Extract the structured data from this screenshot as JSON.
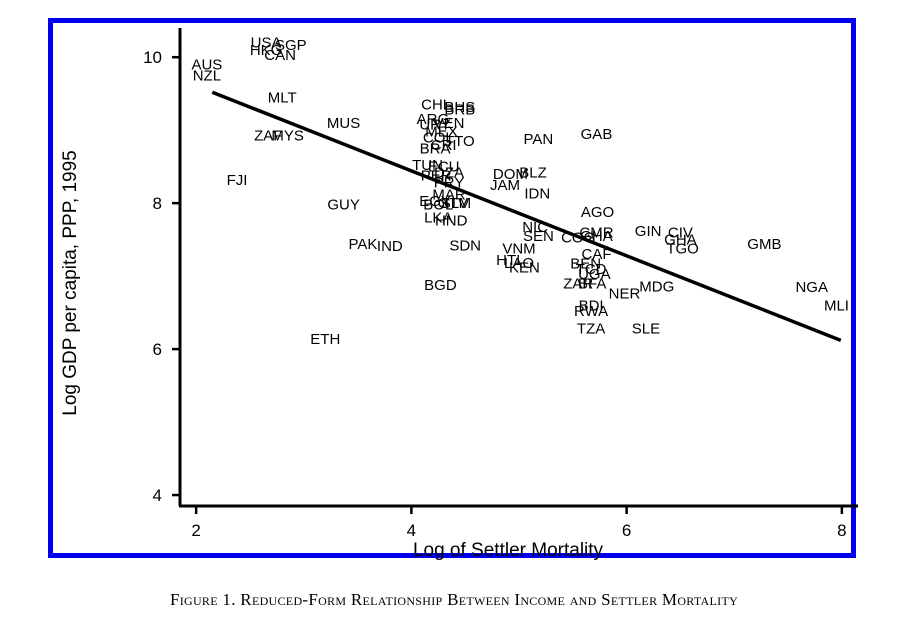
{
  "caption": "Figure 1. Reduced-Form Relationship Between Income and Settler Mortality",
  "frame_color": "#0000ee",
  "chart_data": {
    "type": "scatter",
    "title": "",
    "xlabel": "Log of Settler Mortality",
    "ylabel": "Log GDP per capita, PPP, 1995",
    "xlim": [
      1.85,
      8.15
    ],
    "ylim": [
      3.85,
      10.4
    ],
    "xticks": [
      "2",
      "4",
      "6",
      "8"
    ],
    "xtick_values": [
      2,
      4,
      6,
      8
    ],
    "yticks": [
      "4",
      "6",
      "8",
      "10"
    ],
    "ytick_values": [
      4,
      6,
      8,
      10
    ],
    "grid": false,
    "fit_line": {
      "x": [
        2.15,
        7.99
      ],
      "y": [
        9.52,
        6.12
      ]
    },
    "points": [
      {
        "label": "USA",
        "x": 2.65,
        "y": 10.2
      },
      {
        "label": "SGP",
        "x": 2.88,
        "y": 10.17
      },
      {
        "label": "HKG",
        "x": 2.65,
        "y": 10.1
      },
      {
        "label": "CAN",
        "x": 2.78,
        "y": 10.03
      },
      {
        "label": "AUS",
        "x": 2.1,
        "y": 9.9
      },
      {
        "label": "NZL",
        "x": 2.1,
        "y": 9.75
      },
      {
        "label": "MLT",
        "x": 2.8,
        "y": 9.45
      },
      {
        "label": "MUS",
        "x": 3.37,
        "y": 9.1
      },
      {
        "label": "ZAF",
        "x": 2.67,
        "y": 8.93
      },
      {
        "label": "MYS",
        "x": 2.85,
        "y": 8.93
      },
      {
        "label": "FJI",
        "x": 2.38,
        "y": 8.32
      },
      {
        "label": "GUY",
        "x": 3.37,
        "y": 7.98
      },
      {
        "label": "PAK",
        "x": 3.55,
        "y": 7.44
      },
      {
        "label": "IND",
        "x": 3.8,
        "y": 7.41
      },
      {
        "label": "ETH",
        "x": 3.2,
        "y": 6.14
      },
      {
        "label": "CHL",
        "x": 4.23,
        "y": 9.35
      },
      {
        "label": "BHS",
        "x": 4.45,
        "y": 9.32
      },
      {
        "label": "BRB",
        "x": 4.45,
        "y": 9.28
      },
      {
        "label": "ARG",
        "x": 4.2,
        "y": 9.15
      },
      {
        "label": "URY",
        "x": 4.22,
        "y": 9.08
      },
      {
        "label": "VEN",
        "x": 4.35,
        "y": 9.1
      },
      {
        "label": "MEX",
        "x": 4.28,
        "y": 8.98
      },
      {
        "label": "COL",
        "x": 4.25,
        "y": 8.9
      },
      {
        "label": "CRI",
        "x": 4.3,
        "y": 8.8
      },
      {
        "label": "TTO",
        "x": 4.45,
        "y": 8.85
      },
      {
        "label": "BRA",
        "x": 4.22,
        "y": 8.75
      },
      {
        "label": "PAN",
        "x": 5.18,
        "y": 8.88
      },
      {
        "label": "GAB",
        "x": 5.72,
        "y": 8.95
      },
      {
        "label": "TUN",
        "x": 4.15,
        "y": 8.52
      },
      {
        "label": "ECU",
        "x": 4.3,
        "y": 8.5
      },
      {
        "label": "DZA",
        "x": 4.35,
        "y": 8.42
      },
      {
        "label": "PER",
        "x": 4.23,
        "y": 8.38
      },
      {
        "label": "PRY",
        "x": 4.35,
        "y": 8.28
      },
      {
        "label": "DOM",
        "x": 4.92,
        "y": 8.4
      },
      {
        "label": "BLZ",
        "x": 5.13,
        "y": 8.42
      },
      {
        "label": "JAM",
        "x": 4.87,
        "y": 8.25
      },
      {
        "label": "IDN",
        "x": 5.17,
        "y": 8.13
      },
      {
        "label": "MAR",
        "x": 4.35,
        "y": 8.12
      },
      {
        "label": "EGY",
        "x": 4.22,
        "y": 8.03
      },
      {
        "label": "BOL",
        "x": 4.25,
        "y": 7.98
      },
      {
        "label": "SLV",
        "x": 4.4,
        "y": 8.0
      },
      {
        "label": "LKA",
        "x": 4.25,
        "y": 7.8
      },
      {
        "label": "HND",
        "x": 4.37,
        "y": 7.76
      },
      {
        "label": "GTM",
        "x": 4.4,
        "y": 8.0
      },
      {
        "label": "SDN",
        "x": 4.5,
        "y": 7.42
      },
      {
        "label": "BGD",
        "x": 4.27,
        "y": 6.88
      },
      {
        "label": "NIC",
        "x": 5.15,
        "y": 7.67
      },
      {
        "label": "SEN",
        "x": 5.18,
        "y": 7.55
      },
      {
        "label": "VNM",
        "x": 5.0,
        "y": 7.38
      },
      {
        "label": "HTI",
        "x": 4.9,
        "y": 7.22
      },
      {
        "label": "LAO",
        "x": 5.0,
        "y": 7.18
      },
      {
        "label": "KEN",
        "x": 5.05,
        "y": 7.12
      },
      {
        "label": "AGO",
        "x": 5.73,
        "y": 7.88
      },
      {
        "label": "CMR",
        "x": 5.72,
        "y": 7.6
      },
      {
        "label": "COG",
        "x": 5.55,
        "y": 7.53
      },
      {
        "label": "GHA",
        "x": 5.72,
        "y": 7.55
      },
      {
        "label": "CAF",
        "x": 5.72,
        "y": 7.3
      },
      {
        "label": "BEN",
        "x": 5.62,
        "y": 7.17
      },
      {
        "label": "TCD",
        "x": 5.67,
        "y": 7.1
      },
      {
        "label": "UGA",
        "x": 5.7,
        "y": 7.03
      },
      {
        "label": "ZAR",
        "x": 5.55,
        "y": 6.9
      },
      {
        "label": "BFA",
        "x": 5.68,
        "y": 6.9
      },
      {
        "label": "BDI",
        "x": 5.67,
        "y": 6.6
      },
      {
        "label": "RWA",
        "x": 5.67,
        "y": 6.52
      },
      {
        "label": "TZA",
        "x": 5.67,
        "y": 6.28
      },
      {
        "label": "GIN",
        "x": 6.2,
        "y": 7.62
      },
      {
        "label": "CIV",
        "x": 6.5,
        "y": 7.6
      },
      {
        "label": "GHA",
        "x": 6.5,
        "y": 7.5
      },
      {
        "label": "TGO",
        "x": 6.52,
        "y": 7.38
      },
      {
        "label": "MDG",
        "x": 6.28,
        "y": 6.86
      },
      {
        "label": "NER",
        "x": 5.98,
        "y": 6.76
      },
      {
        "label": "SLE",
        "x": 6.18,
        "y": 6.28
      },
      {
        "label": "GMB",
        "x": 7.28,
        "y": 7.44
      },
      {
        "label": "NGA",
        "x": 7.72,
        "y": 6.85
      },
      {
        "label": "MLI",
        "x": 7.95,
        "y": 6.6
      }
    ]
  }
}
